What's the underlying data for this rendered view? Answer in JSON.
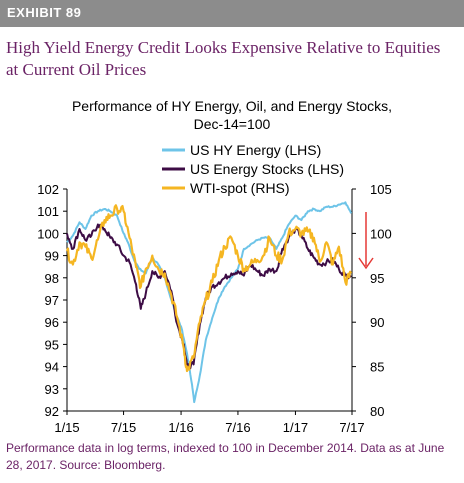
{
  "exhibit": "EXHIBIT 89",
  "headline": "High Yield Energy Credit Looks Expensive Relative to Equities at Current Oil Prices",
  "footnote": "Performance data in log terms, indexed to 100 in December 2014. Data as at June 28, 2017. Source: Bloomberg.",
  "colors": {
    "hy_energy": "#6ec4e8",
    "energy_stocks": "#3d0c45",
    "wti": "#f5b622",
    "arrow": "#e53935",
    "exhibit_bar": "#8c8c8c",
    "headline": "#6b2366"
  },
  "chart_data": {
    "type": "line",
    "title": "Performance of HY Energy, Oil, and Energy Stocks, Dec-14=100",
    "title_lines": [
      "Performance of HY Energy, Oil, and Energy Stocks,",
      "Dec-14=100"
    ],
    "x_ticks": [
      "1/15",
      "7/15",
      "1/16",
      "7/16",
      "1/17",
      "7/17"
    ],
    "left_axis": {
      "label": "",
      "range": [
        92,
        102
      ],
      "ticks": [
        "92",
        "93",
        "94",
        "95",
        "96",
        "97",
        "98",
        "99",
        "100",
        "101",
        "102"
      ]
    },
    "right_axis": {
      "label": "",
      "range": [
        80,
        105
      ],
      "ticks": [
        "80",
        "85",
        "90",
        "95",
        "100",
        "105"
      ]
    },
    "legend_placement": "top-center",
    "grid": false,
    "series": [
      {
        "name": "US HY Energy (LHS)",
        "axis": "left",
        "x": [
          "2015-01-01",
          "2015-01-20",
          "2015-02-10",
          "2015-03-01",
          "2015-03-20",
          "2015-04-10",
          "2015-05-01",
          "2015-05-20",
          "2015-06-10",
          "2015-07-01",
          "2015-07-15",
          "2015-08-01",
          "2015-08-20",
          "2015-09-10",
          "2015-10-01",
          "2015-10-20",
          "2015-11-10",
          "2015-12-01",
          "2015-12-15",
          "2016-01-01",
          "2016-01-20",
          "2016-02-05",
          "2016-02-12",
          "2016-03-01",
          "2016-03-20",
          "2016-04-10",
          "2016-05-01",
          "2016-05-20",
          "2016-06-10",
          "2016-07-01",
          "2016-07-20",
          "2016-08-10",
          "2016-09-01",
          "2016-09-20",
          "2016-10-10",
          "2016-11-01",
          "2016-11-20",
          "2016-12-10",
          "2017-01-01",
          "2017-01-20",
          "2017-02-10",
          "2017-03-01",
          "2017-03-20",
          "2017-04-10",
          "2017-05-01",
          "2017-05-20",
          "2017-06-10",
          "2017-06-28"
        ],
        "y": [
          99.6,
          99.9,
          100.5,
          100.2,
          100.8,
          101.0,
          101.1,
          101.0,
          100.8,
          100.0,
          99.6,
          98.9,
          98.4,
          98.2,
          98.9,
          98.6,
          98.0,
          97.0,
          96.4,
          95.8,
          94.6,
          93.2,
          92.4,
          93.6,
          95.2,
          96.2,
          97.1,
          97.6,
          98.0,
          98.4,
          99.3,
          99.5,
          99.7,
          99.8,
          99.8,
          99.3,
          99.8,
          100.4,
          100.8,
          100.6,
          101.0,
          101.1,
          101.0,
          101.2,
          101.2,
          101.3,
          101.4,
          100.9
        ]
      },
      {
        "name": "US Energy Stocks (LHS)",
        "axis": "left",
        "x": [
          "2015-01-01",
          "2015-01-20",
          "2015-02-10",
          "2015-03-01",
          "2015-03-20",
          "2015-04-10",
          "2015-05-01",
          "2015-05-20",
          "2015-06-10",
          "2015-07-01",
          "2015-07-20",
          "2015-08-10",
          "2015-08-25",
          "2015-09-10",
          "2015-10-01",
          "2015-10-20",
          "2015-11-10",
          "2015-12-01",
          "2015-12-20",
          "2016-01-10",
          "2016-01-20",
          "2016-02-10",
          "2016-03-01",
          "2016-03-20",
          "2016-04-10",
          "2016-05-01",
          "2016-05-20",
          "2016-06-10",
          "2016-07-01",
          "2016-07-20",
          "2016-08-10",
          "2016-09-01",
          "2016-09-20",
          "2016-10-10",
          "2016-11-01",
          "2016-11-20",
          "2016-12-10",
          "2017-01-01",
          "2017-01-20",
          "2017-02-10",
          "2017-03-01",
          "2017-03-20",
          "2017-04-10",
          "2017-05-01",
          "2017-05-20",
          "2017-06-10",
          "2017-06-28"
        ],
        "y": [
          100.0,
          99.3,
          100.2,
          99.7,
          99.9,
          100.4,
          100.2,
          99.8,
          99.5,
          99.0,
          98.7,
          97.7,
          96.6,
          97.3,
          98.3,
          98.0,
          98.3,
          97.4,
          95.9,
          95.0,
          94.0,
          94.1,
          95.9,
          97.1,
          97.6,
          97.8,
          98.0,
          98.2,
          98.3,
          98.1,
          98.6,
          98.3,
          98.1,
          98.4,
          98.3,
          99.3,
          99.8,
          100.2,
          99.9,
          99.3,
          98.9,
          98.6,
          98.7,
          98.8,
          98.4,
          98.1,
          98.1
        ]
      },
      {
        "name": "WTI-spot (RHS)",
        "axis": "right",
        "x": [
          "2015-01-01",
          "2015-01-20",
          "2015-02-10",
          "2015-03-01",
          "2015-03-20",
          "2015-04-10",
          "2015-05-01",
          "2015-05-20",
          "2015-06-10",
          "2015-07-01",
          "2015-07-20",
          "2015-08-10",
          "2015-08-25",
          "2015-09-10",
          "2015-10-01",
          "2015-10-20",
          "2015-11-10",
          "2015-12-01",
          "2015-12-20",
          "2016-01-10",
          "2016-01-20",
          "2016-02-10",
          "2016-03-01",
          "2016-03-20",
          "2016-04-10",
          "2016-05-01",
          "2016-05-20",
          "2016-06-10",
          "2016-07-01",
          "2016-07-20",
          "2016-08-10",
          "2016-09-01",
          "2016-09-20",
          "2016-10-10",
          "2016-11-01",
          "2016-11-20",
          "2016-12-10",
          "2017-01-01",
          "2017-01-20",
          "2017-02-10",
          "2017-03-01",
          "2017-03-20",
          "2017-04-10",
          "2017-05-01",
          "2017-05-20",
          "2017-06-10",
          "2017-06-28"
        ],
        "y": [
          98.0,
          96.5,
          99.0,
          98.5,
          97.2,
          99.3,
          101.5,
          102.0,
          102.8,
          102.5,
          99.5,
          96.2,
          94.0,
          96.0,
          97.5,
          96.0,
          95.5,
          93.0,
          90.5,
          87.0,
          84.5,
          86.0,
          90.0,
          92.5,
          94.5,
          97.0,
          98.5,
          99.5,
          97.5,
          96.0,
          96.5,
          97.0,
          97.5,
          99.5,
          97.5,
          97.0,
          100.0,
          100.5,
          100.0,
          100.2,
          99.5,
          96.8,
          99.0,
          96.5,
          98.5,
          94.5,
          95.5
        ]
      }
    ],
    "annotation": "red arrow pointing down near June 2017"
  }
}
